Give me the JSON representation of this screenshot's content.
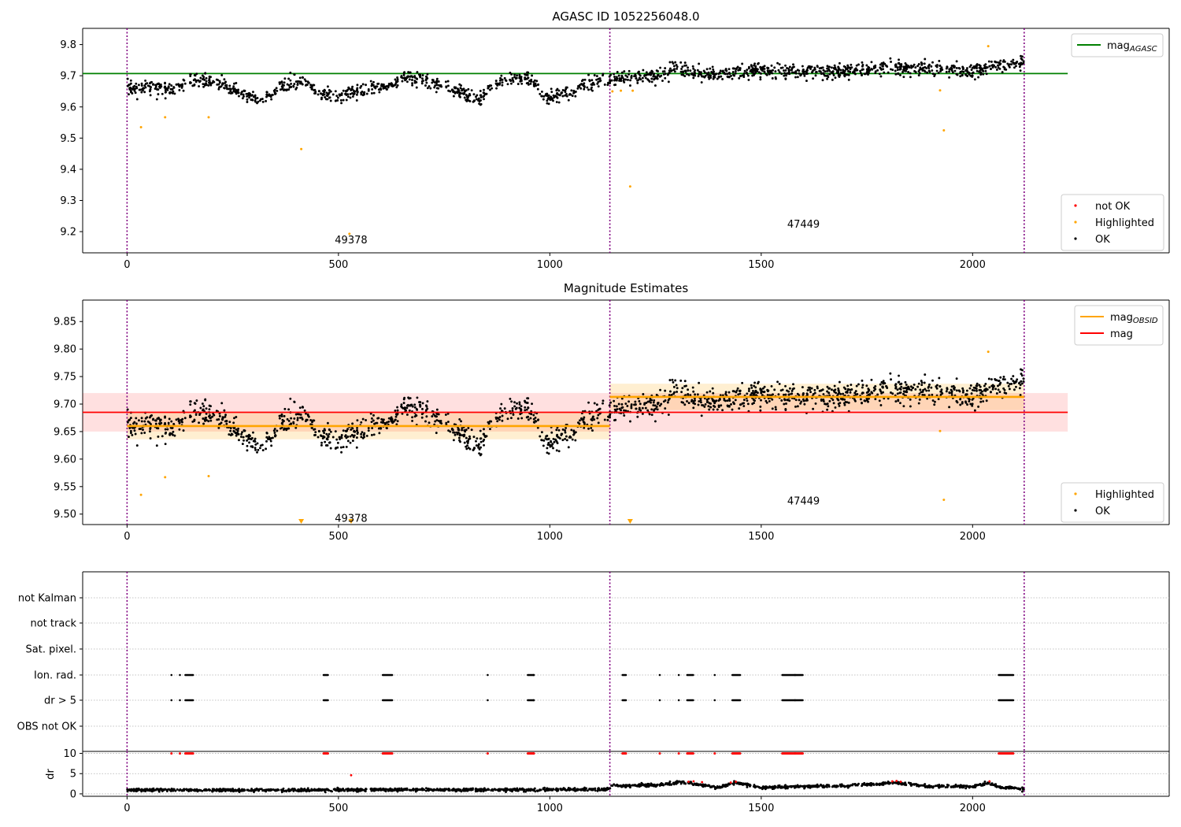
{
  "chart_data": [
    {
      "type": "scatter",
      "title": "AGASC ID 1052256048.0",
      "xlim": [
        -105,
        2465
      ],
      "ylim": [
        9.132,
        9.852
      ],
      "x_ticks": [
        0,
        500,
        1000,
        1500,
        2000
      ],
      "y_ticks": [
        9.2,
        9.3,
        9.4,
        9.5,
        9.6,
        9.7,
        9.8
      ],
      "mag_agasc": 9.707,
      "obsid_boundaries": [
        0,
        1142,
        2122
      ],
      "obsid_labels": [
        {
          "text": "49378",
          "x": 530,
          "y": 9.175
        },
        {
          "text": "47449",
          "x": 1600,
          "y": 9.225
        }
      ],
      "legend_top": {
        "position": "top-right",
        "entries": [
          {
            "label_main": "mag",
            "label_sub": "AGASC",
            "color": "#008000"
          }
        ]
      },
      "legend_bottom": {
        "position": "bottom-right",
        "entries": [
          {
            "label": "not OK",
            "color": "#ff0000"
          },
          {
            "label": "Highlighted",
            "color": "#ffa500"
          },
          {
            "label": "OK",
            "color": "#000000"
          }
        ]
      },
      "highlighted_points": [
        [
          33,
          9.535
        ],
        [
          90,
          9.567
        ],
        [
          193,
          9.567
        ],
        [
          412,
          9.465
        ],
        [
          526,
          9.193
        ],
        [
          1148,
          9.65
        ],
        [
          1168,
          9.652
        ],
        [
          1190,
          9.345
        ],
        [
          1196,
          9.652
        ],
        [
          1923,
          9.653
        ],
        [
          1932,
          9.525
        ],
        [
          2037,
          9.795
        ]
      ],
      "ok_anchors": [
        [
          0,
          9.66
        ],
        [
          40,
          9.665
        ],
        [
          80,
          9.66
        ],
        [
          120,
          9.655
        ],
        [
          150,
          9.69
        ],
        [
          200,
          9.68
        ],
        [
          260,
          9.65
        ],
        [
          320,
          9.62
        ],
        [
          370,
          9.67
        ],
        [
          420,
          9.685
        ],
        [
          460,
          9.64
        ],
        [
          500,
          9.63
        ],
        [
          560,
          9.655
        ],
        [
          620,
          9.665
        ],
        [
          660,
          9.695
        ],
        [
          720,
          9.68
        ],
        [
          780,
          9.65
        ],
        [
          830,
          9.62
        ],
        [
          880,
          9.68
        ],
        [
          950,
          9.695
        ],
        [
          990,
          9.63
        ],
        [
          1030,
          9.64
        ],
        [
          1100,
          9.68
        ],
        [
          1142,
          9.685
        ],
        [
          1142,
          9.69
        ],
        [
          1250,
          9.7
        ],
        [
          1300,
          9.72
        ],
        [
          1400,
          9.705
        ],
        [
          1500,
          9.72
        ],
        [
          1600,
          9.71
        ],
        [
          1700,
          9.715
        ],
        [
          1800,
          9.725
        ],
        [
          1900,
          9.725
        ],
        [
          1990,
          9.71
        ],
        [
          2050,
          9.735
        ],
        [
          2122,
          9.74
        ]
      ],
      "ok_point_count": 1700
    },
    {
      "type": "scatter",
      "title": "Magnitude Estimates",
      "xlim": [
        -105,
        2465
      ],
      "ylim": [
        9.481,
        9.889
      ],
      "x_ticks": [
        0,
        500,
        1000,
        1500,
        2000
      ],
      "y_ticks": [
        9.5,
        9.55,
        9.6,
        9.65,
        9.7,
        9.75,
        9.8,
        9.85
      ],
      "mag": 9.685,
      "mag_band": [
        9.65,
        9.72
      ],
      "mag_obsid": [
        {
          "x0": 0,
          "x1": 1142,
          "value": 9.66,
          "band": [
            9.636,
            9.684
          ]
        },
        {
          "x0": 1142,
          "x1": 2122,
          "value": 9.713,
          "band": [
            9.689,
            9.737
          ]
        }
      ],
      "overall_x_range": [
        -105,
        2225
      ],
      "obsid_boundaries": [
        0,
        1142,
        2122
      ],
      "obsid_labels": [
        {
          "text": "49378",
          "x": 530,
          "y": 9.493
        },
        {
          "text": "47449",
          "x": 1600,
          "y": 9.525
        }
      ],
      "offscale_markers": [
        412,
        530,
        1190
      ],
      "legend_top": {
        "position": "top-right",
        "entries": [
          {
            "label_main": "mag",
            "label_sub": "OBSID",
            "color": "#ffa500"
          },
          {
            "label_main": "mag",
            "label_sub": "",
            "color": "#ff0000"
          }
        ]
      },
      "legend_bottom": {
        "position": "bottom-right",
        "entries": [
          {
            "label": "Highlighted",
            "color": "#ffa500"
          },
          {
            "label": "OK",
            "color": "#000000"
          }
        ]
      },
      "highlighted_points": [
        [
          33,
          9.535
        ],
        [
          90,
          9.567
        ],
        [
          193,
          9.569
        ],
        [
          1923,
          9.651
        ],
        [
          1932,
          9.526
        ],
        [
          2037,
          9.795
        ]
      ]
    },
    {
      "type": "scatter",
      "title": "",
      "xlim": [
        -105,
        2465
      ],
      "x_ticks": [
        0,
        500,
        1000,
        1500,
        2000
      ],
      "obsid_boundaries": [
        0,
        1142,
        2122
      ],
      "flag_rows": [
        "not Kalman",
        "not track",
        "Sat. pixel.",
        "Ion. rad.",
        "dr > 5",
        "OBS not OK"
      ],
      "flag_clusters": [
        [
          105,
          1
        ],
        [
          125,
          1
        ],
        [
          138,
          10
        ],
        [
          465,
          6
        ],
        [
          605,
          12
        ],
        [
          853,
          1
        ],
        [
          948,
          8
        ],
        [
          962,
          1
        ],
        [
          1172,
          5
        ],
        [
          1260,
          1
        ],
        [
          1305,
          1
        ],
        [
          1325,
          8
        ],
        [
          1390,
          1
        ],
        [
          1432,
          10
        ],
        [
          1550,
          25
        ],
        [
          1580,
          1
        ],
        [
          2062,
          18
        ]
      ],
      "dr_ylabel": "dr",
      "dr_ylim": [
        -0.6,
        10.5
      ],
      "dr_ticks": [
        0,
        5,
        10
      ],
      "dr_points_ok_anchors": [
        [
          0,
          1.0
        ],
        [
          300,
          0.9
        ],
        [
          600,
          1.0
        ],
        [
          900,
          1.0
        ],
        [
          1142,
          1.1
        ],
        [
          1145,
          1.9
        ],
        [
          1250,
          2.2
        ],
        [
          1320,
          2.9
        ],
        [
          1400,
          1.5
        ],
        [
          1440,
          2.8
        ],
        [
          1500,
          1.6
        ],
        [
          1600,
          1.8
        ],
        [
          1700,
          2.0
        ],
        [
          1820,
          2.7
        ],
        [
          1900,
          1.8
        ],
        [
          2000,
          1.8
        ],
        [
          2040,
          2.8
        ],
        [
          2060,
          1.6
        ],
        [
          2122,
          1.2
        ]
      ],
      "dr_red_points": [
        [
          530,
          4.6
        ],
        [
          1328,
          3.0
        ],
        [
          1340,
          3.1
        ],
        [
          1360,
          2.9
        ],
        [
          1428,
          2.8
        ],
        [
          1440,
          3.0
        ],
        [
          1810,
          3.1
        ],
        [
          1820,
          3.2
        ],
        [
          1830,
          3.0
        ],
        [
          2040,
          3.1
        ]
      ]
    }
  ]
}
